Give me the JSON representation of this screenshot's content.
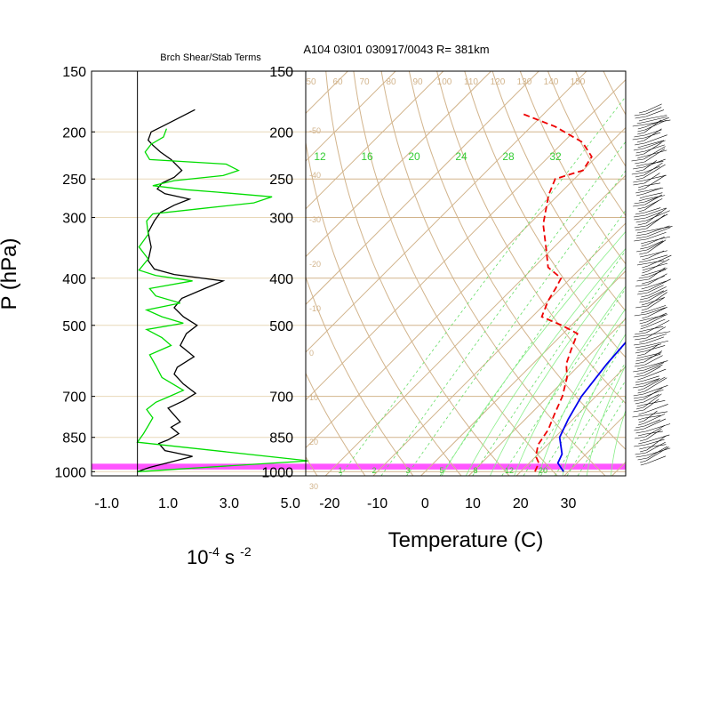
{
  "chart_data": [
    {
      "type": "line",
      "title": "Brch Shear/Stab Terms",
      "ylabel": "P (hPa)",
      "xlabel_base": "10",
      "xlabel_exp1": "-4",
      "xlabel_mid": " s ",
      "xlabel_exp2": "-2",
      "xlim": [
        -1.5,
        5.5
      ],
      "ylim": [
        1020,
        150
      ],
      "y_scale": "log",
      "x_ticks": [
        -1.0,
        1.0,
        3.0,
        5.0
      ],
      "x_tick_labels": [
        "-1.0",
        "1.0",
        "3.0",
        "5.0"
      ],
      "y_ticks": [
        150,
        200,
        250,
        300,
        400,
        500,
        700,
        850,
        1000
      ],
      "y_tick_labels": [
        "150",
        "200",
        "250",
        "300",
        "400",
        "500",
        "700",
        "850",
        "1000"
      ],
      "series": [
        {
          "color": "#000000",
          "points": [
            [
              1.88,
              180
            ],
            [
              1.3,
              188
            ],
            [
              0.8,
              195
            ],
            [
              0.45,
              200
            ],
            [
              0.35,
              208
            ],
            [
              0.5,
              213
            ],
            [
              0.75,
              220
            ],
            [
              1.1,
              228
            ],
            [
              1.45,
              240
            ],
            [
              1.2,
              248
            ],
            [
              0.8,
              255
            ],
            [
              0.65,
              262
            ],
            [
              0.9,
              268
            ],
            [
              1.7,
              275
            ],
            [
              1.2,
              283
            ],
            [
              0.75,
              293
            ],
            [
              0.55,
              305
            ],
            [
              0.35,
              322
            ],
            [
              0.45,
              345
            ],
            [
              0.35,
              368
            ],
            [
              0.55,
              383
            ],
            [
              1.2,
              393
            ],
            [
              2.8,
              405
            ],
            [
              2.2,
              420
            ],
            [
              1.45,
              440
            ],
            [
              1.2,
              460
            ],
            [
              1.5,
              480
            ],
            [
              1.95,
              500
            ],
            [
              1.6,
              520
            ],
            [
              1.4,
              550
            ],
            [
              1.85,
              580
            ],
            [
              1.3,
              610
            ],
            [
              1.2,
              630
            ],
            [
              1.5,
              660
            ],
            [
              1.9,
              690
            ],
            [
              1.5,
              715
            ],
            [
              1.0,
              740
            ],
            [
              1.2,
              765
            ],
            [
              1.4,
              790
            ],
            [
              1.1,
              810
            ],
            [
              1.35,
              835
            ],
            [
              1.0,
              860
            ],
            [
              0.7,
              875
            ],
            [
              0.9,
              905
            ],
            [
              1.8,
              930
            ],
            [
              1.1,
              955
            ],
            [
              0.4,
              980
            ],
            [
              0.0,
              1000
            ]
          ]
        },
        {
          "color": "#00dd00",
          "points": [
            [
              0.95,
              197
            ],
            [
              0.85,
              205
            ],
            [
              0.45,
              212
            ],
            [
              0.25,
              220
            ],
            [
              0.4,
              228
            ],
            [
              2.9,
              233
            ],
            [
              3.3,
              240
            ],
            [
              2.8,
              246
            ],
            [
              1.2,
              252
            ],
            [
              0.5,
              258
            ],
            [
              1.6,
              263
            ],
            [
              2.6,
              266
            ],
            [
              4.4,
              272
            ],
            [
              3.8,
              280
            ],
            [
              2.0,
              288
            ],
            [
              0.5,
              295
            ],
            [
              0.3,
              305
            ],
            [
              0.35,
              325
            ],
            [
              0.05,
              345
            ],
            [
              0.35,
              365
            ],
            [
              0.05,
              385
            ],
            [
              0.6,
              395
            ],
            [
              1.8,
              405
            ],
            [
              0.4,
              420
            ],
            [
              0.6,
              435
            ],
            [
              1.4,
              450
            ],
            [
              0.3,
              465
            ],
            [
              0.8,
              480
            ],
            [
              1.5,
              495
            ],
            [
              0.3,
              510
            ],
            [
              0.8,
              530
            ],
            [
              1.1,
              550
            ],
            [
              0.4,
              575
            ],
            [
              0.6,
              605
            ],
            [
              0.8,
              640
            ],
            [
              1.5,
              680
            ],
            [
              1.05,
              700
            ],
            [
              0.6,
              720
            ],
            [
              0.3,
              745
            ],
            [
              0.5,
              775
            ],
            [
              0.35,
              805
            ],
            [
              0.2,
              835
            ],
            [
              0.0,
              870
            ],
            [
              5.6,
              950
            ],
            [
              0.0,
              1000
            ]
          ]
        }
      ],
      "highlight_band_hpa": [
        963,
        990
      ],
      "highlight_color": "#ff55ff"
    },
    {
      "type": "line",
      "title": "A104 03I01 030917/0043 R= 381km",
      "xlabel": "Temperature (C)",
      "y_scale": "log",
      "skew_t": true,
      "xlim_at_1000hpa": [
        -25,
        42
      ],
      "ylim": [
        1020,
        150
      ],
      "x_ticks": [
        -20,
        -10,
        0,
        10,
        20,
        30
      ],
      "x_tick_labels": [
        "-20",
        "-10",
        "0",
        "10",
        "20",
        "30"
      ],
      "y_tick_labels": [
        "150",
        "200",
        "250",
        "300",
        "400",
        "500",
        "700",
        "850",
        "1000"
      ],
      "isotherm_labels": [
        "-50",
        "-40",
        "-30",
        "-20",
        "-10",
        "0",
        "10",
        "20",
        "30"
      ],
      "dry_adiabat_labels": [
        "50",
        "60",
        "70",
        "80",
        "90",
        "100",
        "110",
        "120",
        "130",
        "140",
        "150"
      ],
      "mixing_ratio_labels": [
        "12",
        "16",
        "20",
        "24",
        "28",
        "32"
      ],
      "mixing_ratio_bottom_labels": [
        "1",
        "2",
        "3",
        "5",
        "8",
        "12",
        "20"
      ],
      "series": [
        {
          "name": "",
          "color": "#0000ee",
          "style": "solid",
          "points": [
            [
              29,
              1000
            ],
            [
              26,
              960
            ],
            [
              25,
              920
            ],
            [
              21,
              850
            ],
            [
              19,
              780
            ],
            [
              17,
              700
            ],
            [
              15.5,
              600
            ],
            [
              14.5,
              500
            ],
            [
              13.5,
              430
            ],
            [
              12,
              400
            ],
            [
              7,
              340
            ],
            [
              2,
              290
            ],
            [
              -3,
              250
            ],
            [
              -8,
              215
            ],
            [
              -14,
              190
            ],
            [
              -19,
              175
            ]
          ]
        },
        {
          "name": "",
          "color": "#ee0000",
          "style": "dashed",
          "points": [
            [
              23,
              1000
            ],
            [
              22,
              960
            ],
            [
              20,
              930
            ],
            [
              18,
              880
            ],
            [
              17,
              820
            ],
            [
              15,
              760
            ],
            [
              13,
              700
            ],
            [
              10,
              640
            ],
            [
              7,
              600
            ],
            [
              5,
              560
            ],
            [
              3,
              520
            ],
            [
              -2,
              500
            ],
            [
              -8,
              480
            ],
            [
              -10,
              445
            ],
            [
              -11,
              420
            ],
            [
              -12,
              400
            ],
            [
              -17,
              380
            ],
            [
              -21,
              350
            ],
            [
              -27,
              310
            ],
            [
              -32,
              270
            ],
            [
              -34,
              250
            ],
            [
              -30,
              240
            ],
            [
              -31,
              225
            ],
            [
              -36,
              210
            ],
            [
              -45,
              195
            ],
            [
              -55,
              183
            ]
          ]
        }
      ]
    }
  ]
}
